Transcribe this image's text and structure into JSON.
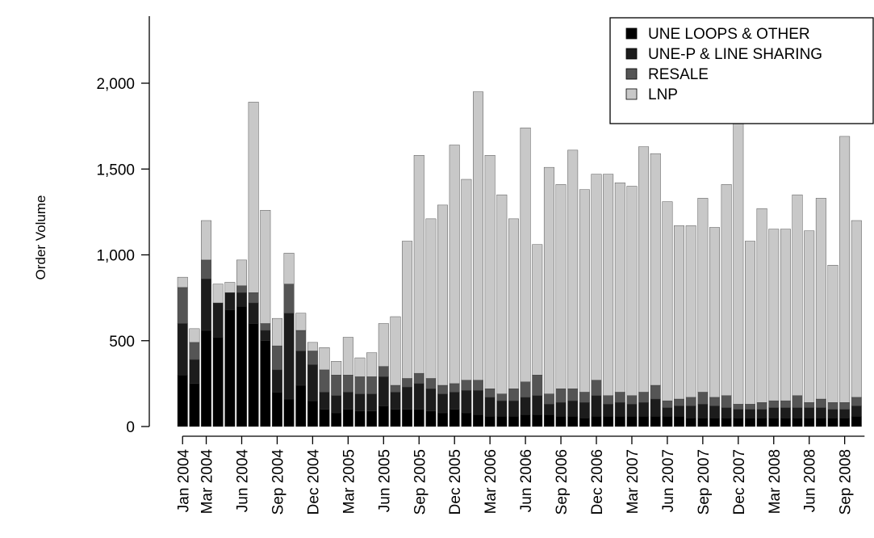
{
  "chart_data": {
    "type": "bar",
    "stacked": true,
    "title": "",
    "xlabel": "",
    "ylabel": "Order Volume",
    "ylim": [
      0,
      2400
    ],
    "yticks": [
      0,
      500,
      1000,
      1500,
      2000
    ],
    "ytick_labels": [
      "0",
      "500",
      "1,000",
      "1,500",
      "2,000"
    ],
    "grid": false,
    "legend_position": "top-right",
    "categories": [
      "Jan 2004",
      "Feb 2004",
      "Mar 2004",
      "Apr 2004",
      "May 2004",
      "Jun 2004",
      "Jul 2004",
      "Aug 2004",
      "Sep 2004",
      "Oct 2004",
      "Nov 2004",
      "Dec 2004",
      "Jan 2005",
      "Feb 2005",
      "Mar 2005",
      "Apr 2005",
      "May 2005",
      "Jun 2005",
      "Jul 2005",
      "Aug 2005",
      "Sep 2005",
      "Oct 2005",
      "Nov 2005",
      "Dec 2005",
      "Jan 2006",
      "Feb 2006",
      "Mar 2006",
      "Apr 2006",
      "May 2006",
      "Jun 2006",
      "Jul 2006",
      "Aug 2006",
      "Sep 2006",
      "Oct 2006",
      "Nov 2006",
      "Dec 2006",
      "Jan 2007",
      "Feb 2007",
      "Mar 2007",
      "Apr 2007",
      "May 2007",
      "Jun 2007",
      "Jul 2007",
      "Aug 2007",
      "Sep 2007",
      "Oct 2007",
      "Nov 2007",
      "Dec 2007",
      "Jan 2008",
      "Feb 2008",
      "Mar 2008",
      "Apr 2008",
      "May 2008",
      "Jun 2008",
      "Jul 2008",
      "Aug 2008",
      "Sep 2008",
      "Oct 2008"
    ],
    "x_tick_labels": [
      "Jan 2004",
      "Mar 2004",
      "Jun 2004",
      "Sep 2004",
      "Dec 2004",
      "Mar 2005",
      "Jun 2005",
      "Sep 2005",
      "Dec 2005",
      "Mar 2006",
      "Jun 2006",
      "Sep 2006",
      "Dec 2006",
      "Mar 2007",
      "Jun 2007",
      "Sep 2007",
      "Dec 2007",
      "Mar 2008",
      "Jun 2008",
      "Sep 2008"
    ],
    "series": [
      {
        "name": "UNE LOOPS & OTHER",
        "color": "#000000",
        "values": [
          300,
          250,
          560,
          520,
          680,
          700,
          600,
          500,
          200,
          160,
          240,
          150,
          100,
          80,
          100,
          90,
          90,
          120,
          100,
          100,
          100,
          90,
          80,
          100,
          80,
          70,
          60,
          60,
          60,
          70,
          70,
          70,
          60,
          60,
          50,
          60,
          60,
          60,
          60,
          60,
          60,
          60,
          60,
          50,
          50,
          50,
          50,
          50,
          50,
          50,
          50,
          50,
          50,
          50,
          50,
          50,
          50,
          60
        ]
      },
      {
        "name": "UNE-P & LINE SHARING",
        "color": "#1c1c1c",
        "values": [
          300,
          140,
          300,
          200,
          100,
          80,
          120,
          60,
          130,
          500,
          200,
          210,
          100,
          100,
          100,
          100,
          100,
          170,
          100,
          130,
          150,
          130,
          110,
          100,
          130,
          140,
          110,
          90,
          90,
          100,
          110,
          60,
          80,
          90,
          90,
          120,
          70,
          80,
          70,
          80,
          100,
          50,
          60,
          70,
          80,
          70,
          60,
          50,
          50,
          50,
          60,
          60,
          60,
          60,
          60,
          50,
          50,
          60
        ]
      },
      {
        "name": "RESALE",
        "color": "#555555",
        "values": [
          210,
          100,
          110,
          0,
          0,
          40,
          60,
          40,
          140,
          170,
          120,
          80,
          130,
          120,
          100,
          100,
          100,
          60,
          40,
          50,
          60,
          60,
          50,
          50,
          60,
          60,
          50,
          40,
          70,
          90,
          120,
          60,
          80,
          70,
          60,
          90,
          50,
          60,
          50,
          60,
          80,
          40,
          40,
          50,
          70,
          50,
          70,
          30,
          30,
          40,
          40,
          40,
          70,
          30,
          50,
          40,
          40,
          50
        ]
      },
      {
        "name": "LNP",
        "color": "#c8c8c8",
        "values": [
          60,
          80,
          230,
          110,
          60,
          150,
          1110,
          660,
          160,
          180,
          100,
          50,
          130,
          80,
          220,
          110,
          140,
          250,
          400,
          800,
          1270,
          930,
          1050,
          1390,
          1170,
          1680,
          1360,
          1160,
          990,
          1480,
          760,
          1320,
          1190,
          1390,
          1180,
          1200,
          1290,
          1220,
          1220,
          1430,
          1350,
          1160,
          1010,
          1000,
          1130,
          990,
          1230,
          1690,
          950,
          1130,
          1000,
          1000,
          1170,
          1000,
          1170,
          800,
          1550,
          1030
        ]
      }
    ]
  }
}
